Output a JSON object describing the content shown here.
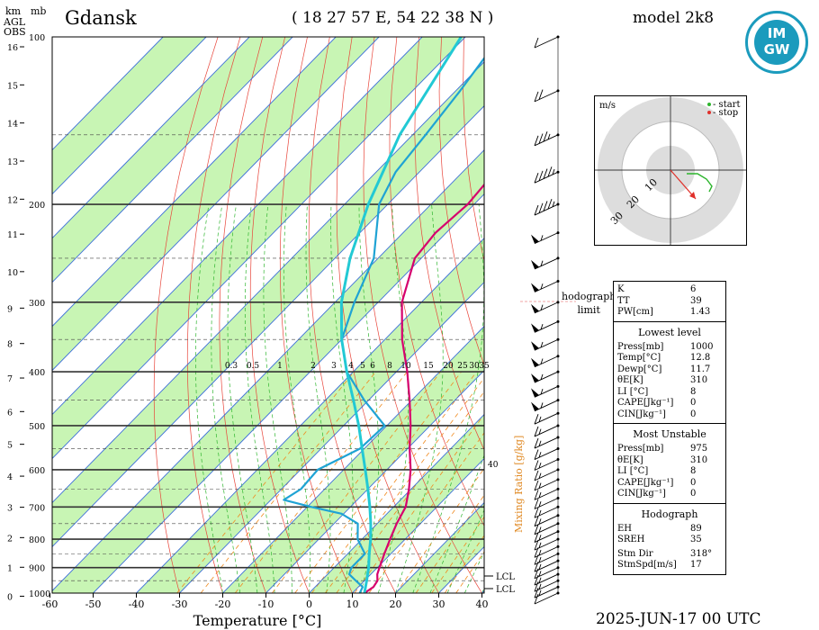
{
  "header": {
    "station": "Gdansk",
    "coordinates": "( 18 27 57  E,  54 22 38  N )",
    "model": "model 2k8",
    "date": "2025-JUN-17    00 UTC",
    "km_label": "km",
    "mb_label": "mb",
    "agl_label": "AGL",
    "obs_label": "OBS",
    "logo_line1": "IM",
    "logo_line2": "GW"
  },
  "chart_data": {
    "type": "line",
    "subtype": "skew-T log-p",
    "xlabel": "Temperature [°C]",
    "ylabel": "",
    "x_ticks": [
      -60,
      -50,
      -40,
      -30,
      -20,
      -10,
      0,
      10,
      20,
      30,
      40
    ],
    "pressure_levels": [
      100,
      200,
      300,
      400,
      500,
      600,
      700,
      800,
      900,
      1000
    ],
    "height_ticks_km": [
      0,
      1,
      2,
      3,
      4,
      5,
      6,
      7,
      8,
      9,
      10,
      11,
      12,
      13,
      14,
      15,
      16
    ],
    "mixing_ratio_label": "Mixing Ratio [g/kg]",
    "mixing_ratio_values": [
      "0.3",
      "0.5",
      "1",
      "2",
      "3",
      "4",
      "5",
      "6",
      "8",
      "10",
      "15",
      "20",
      "25",
      "30",
      "35"
    ],
    "mixing_ratio_extra": "40",
    "lcl_labels": [
      "LCL",
      "LCL"
    ],
    "series": [
      {
        "color": "#d6006e",
        "points": [
          [
            1000,
            12.8
          ],
          [
            975,
            13.5
          ],
          [
            950,
            13.0
          ],
          [
            925,
            11.5
          ],
          [
            900,
            10.5
          ],
          [
            850,
            8.5
          ],
          [
            800,
            6.5
          ],
          [
            750,
            4.5
          ],
          [
            700,
            2.8
          ],
          [
            650,
            -0.5
          ],
          [
            600,
            -4.5
          ],
          [
            550,
            -9.5
          ],
          [
            500,
            -14.5
          ],
          [
            450,
            -20.5
          ],
          [
            400,
            -27.5
          ],
          [
            350,
            -36.0
          ],
          [
            300,
            -44.5
          ],
          [
            250,
            -51.5
          ],
          [
            225,
            -52.5
          ],
          [
            200,
            -51.5
          ],
          [
            175,
            -52.5
          ],
          [
            150,
            -56.0
          ],
          [
            125,
            -60.0
          ],
          [
            100,
            -65.0
          ]
        ]
      },
      {
        "color": "#1fa3d4",
        "points": [
          [
            1000,
            11.7
          ],
          [
            975,
            11.0
          ],
          [
            950,
            8.0
          ],
          [
            925,
            5.0
          ],
          [
            900,
            4.0
          ],
          [
            850,
            4.0
          ],
          [
            800,
            -1.0
          ],
          [
            750,
            -4.5
          ],
          [
            720,
            -10.5
          ],
          [
            700,
            -19.0
          ],
          [
            680,
            -27.0
          ],
          [
            650,
            -25.5
          ],
          [
            600,
            -26.0
          ],
          [
            550,
            -21.0
          ],
          [
            500,
            -20.5
          ],
          [
            450,
            -31.0
          ],
          [
            400,
            -41.5
          ],
          [
            350,
            -50.0
          ],
          [
            300,
            -55.5
          ],
          [
            250,
            -61.0
          ],
          [
            200,
            -72.0
          ],
          [
            175,
            -75.5
          ],
          [
            150,
            -77.0
          ],
          [
            125,
            -79.0
          ],
          [
            100,
            -82.0
          ]
        ]
      },
      {
        "color": "#22c9d4",
        "points": [
          [
            1000,
            12.8
          ],
          [
            950,
            10.5
          ],
          [
            900,
            8.0
          ],
          [
            850,
            5.0
          ],
          [
            800,
            2.0
          ],
          [
            750,
            -1.5
          ],
          [
            700,
            -5.5
          ],
          [
            650,
            -10.0
          ],
          [
            600,
            -15.0
          ],
          [
            550,
            -20.5
          ],
          [
            500,
            -26.5
          ],
          [
            450,
            -33.5
          ],
          [
            400,
            -41.5
          ],
          [
            350,
            -50.0
          ],
          [
            300,
            -58.5
          ],
          [
            250,
            -66.5
          ],
          [
            200,
            -74.5
          ],
          [
            150,
            -83.0
          ],
          [
            100,
            -91.0
          ]
        ]
      }
    ],
    "wind_barbs": [
      {
        "p": 1000,
        "speed": 10
      },
      {
        "p": 975,
        "speed": 15
      },
      {
        "p": 950,
        "speed": 15
      },
      {
        "p": 925,
        "speed": 15
      },
      {
        "p": 900,
        "speed": 15
      },
      {
        "p": 875,
        "speed": 15
      },
      {
        "p": 850,
        "speed": 15
      },
      {
        "p": 825,
        "speed": 15
      },
      {
        "p": 800,
        "speed": 15
      },
      {
        "p": 775,
        "speed": 15
      },
      {
        "p": 750,
        "speed": 15
      },
      {
        "p": 725,
        "speed": 15
      },
      {
        "p": 700,
        "speed": 15
      },
      {
        "p": 675,
        "speed": 15
      },
      {
        "p": 650,
        "speed": 15
      },
      {
        "p": 625,
        "speed": 15
      },
      {
        "p": 600,
        "speed": 15
      },
      {
        "p": 575,
        "speed": 15
      },
      {
        "p": 550,
        "speed": 15
      },
      {
        "p": 525,
        "speed": 15
      },
      {
        "p": 500,
        "speed": 15
      },
      {
        "p": 475,
        "speed": 15
      },
      {
        "p": 450,
        "speed": 55
      },
      {
        "p": 425,
        "speed": 55
      },
      {
        "p": 400,
        "speed": 55
      },
      {
        "p": 375,
        "speed": 55
      },
      {
        "p": 350,
        "speed": 55
      },
      {
        "p": 325,
        "speed": 55
      },
      {
        "p": 300,
        "speed": 55
      },
      {
        "p": 275,
        "speed": 55
      },
      {
        "p": 250,
        "speed": 55
      },
      {
        "p": 225,
        "speed": 55
      },
      {
        "p": 200,
        "speed": 45
      },
      {
        "p": 175,
        "speed": 45
      },
      {
        "p": 150,
        "speed": 35
      },
      {
        "p": 125,
        "speed": 20
      },
      {
        "p": 100,
        "speed": 10
      }
    ]
  },
  "hodograph": {
    "unit": "m/s",
    "rings": [
      "10",
      "20",
      "30"
    ],
    "legend_start": "- start",
    "legend_stop": "- stop",
    "start_color": "#2db52d",
    "stop_color": "#e0302a",
    "limit_line1": "hodograph",
    "limit_line2": "limit"
  },
  "indices": {
    "top": [
      {
        "label": "K",
        "value": "6"
      },
      {
        "label": "TT",
        "value": "39"
      },
      {
        "label": "PW[cm]",
        "value": "1.43"
      }
    ],
    "lowest_title": "Lowest level",
    "lowest": [
      {
        "label": "Press[mb]",
        "value": "1000"
      },
      {
        "label": "Temp[°C]",
        "value": "12.8"
      },
      {
        "label": "Dewp[°C]",
        "value": "11.7"
      },
      {
        "label": "θE[K]",
        "value": "310"
      },
      {
        "label": "LI [°C]",
        "value": "8"
      },
      {
        "label": "CAPE[Jkg⁻¹]",
        "value": "0"
      },
      {
        "label": "CIN[Jkg⁻¹]",
        "value": "0"
      }
    ],
    "unstable_title": "Most Unstable",
    "unstable": [
      {
        "label": "Press[mb]",
        "value": "975"
      },
      {
        "label": "θE[K]",
        "value": "310"
      },
      {
        "label": "LI [°C]",
        "value": "8"
      },
      {
        "label": "CAPE[Jkg⁻¹]",
        "value": "0"
      },
      {
        "label": "CIN[Jkg⁻¹]",
        "value": "0"
      }
    ],
    "hodo_title": "Hodograph",
    "hodo": [
      {
        "label": "EH",
        "value": "89"
      },
      {
        "label": "SREH",
        "value": "35"
      },
      {
        "label": "Stm Dir",
        "value": "318°"
      },
      {
        "label": "StmSpd[m/s]",
        "value": "17"
      }
    ]
  }
}
